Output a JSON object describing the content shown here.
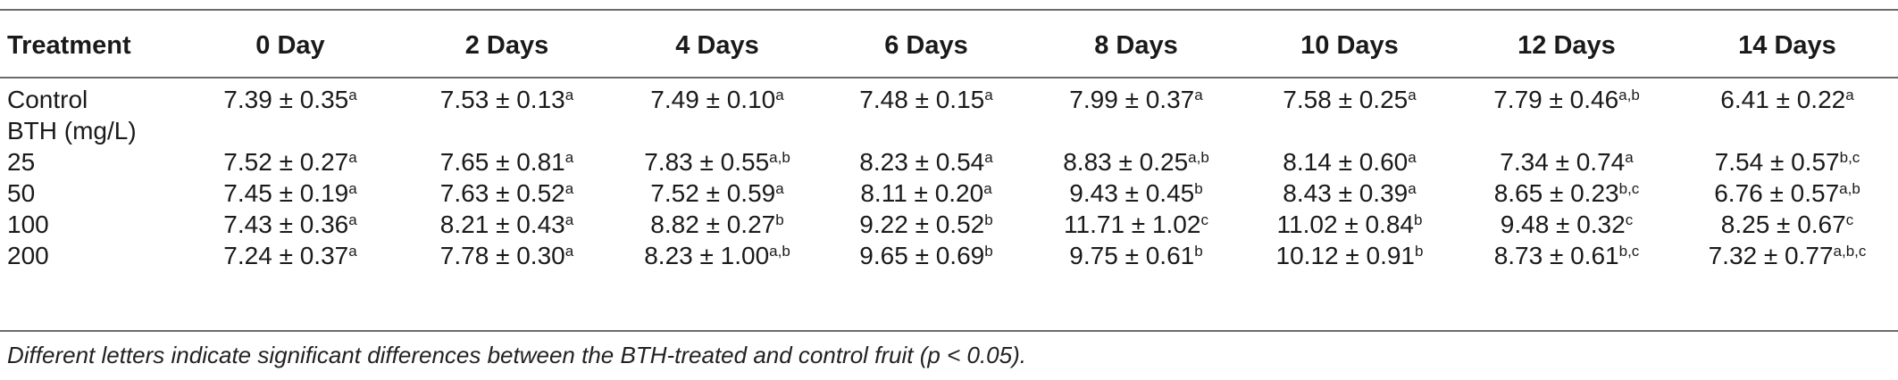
{
  "table": {
    "columns": [
      "Treatment",
      "0 Day",
      "2 Days",
      "4 Days",
      "6 Days",
      "8 Days",
      "10 Days",
      "12 Days",
      "14 Days"
    ],
    "rows": [
      {
        "treatment": "Control",
        "cells": [
          {
            "v": "7.39 ± 0.35",
            "s": "a"
          },
          {
            "v": "7.53 ± 0.13",
            "s": "a"
          },
          {
            "v": "7.49 ± 0.10",
            "s": "a"
          },
          {
            "v": "7.48 ± 0.15",
            "s": "a"
          },
          {
            "v": "7.99 ± 0.37",
            "s": "a"
          },
          {
            "v": "7.58 ± 0.25",
            "s": "a"
          },
          {
            "v": "7.79 ± 0.46",
            "s": "a,b"
          },
          {
            "v": "6.41 ± 0.22",
            "s": "a"
          }
        ]
      },
      {
        "treatment": "BTH (mg/L)",
        "cells": []
      },
      {
        "treatment": "25",
        "cells": [
          {
            "v": "7.52 ± 0.27",
            "s": "a"
          },
          {
            "v": "7.65 ± 0.81",
            "s": "a"
          },
          {
            "v": "7.83 ± 0.55",
            "s": "a,b"
          },
          {
            "v": "8.23 ± 0.54",
            "s": "a"
          },
          {
            "v": "8.83 ± 0.25",
            "s": "a,b"
          },
          {
            "v": "8.14 ± 0.60",
            "s": "a"
          },
          {
            "v": "7.34 ± 0.74",
            "s": "a"
          },
          {
            "v": "7.54 ± 0.57",
            "s": "b,c"
          }
        ]
      },
      {
        "treatment": "50",
        "cells": [
          {
            "v": "7.45 ± 0.19",
            "s": "a"
          },
          {
            "v": "7.63 ± 0.52",
            "s": "a"
          },
          {
            "v": "7.52 ± 0.59",
            "s": "a"
          },
          {
            "v": "8.11 ± 0.20",
            "s": "a"
          },
          {
            "v": "9.43 ± 0.45",
            "s": "b"
          },
          {
            "v": "8.43 ± 0.39",
            "s": "a"
          },
          {
            "v": "8.65 ± 0.23",
            "s": "b,c"
          },
          {
            "v": "6.76 ± 0.57",
            "s": "a,b"
          }
        ]
      },
      {
        "treatment": "100",
        "cells": [
          {
            "v": "7.43 ± 0.36",
            "s": "a"
          },
          {
            "v": "8.21 ± 0.43",
            "s": "a"
          },
          {
            "v": "8.82 ± 0.27",
            "s": "b"
          },
          {
            "v": "9.22 ± 0.52",
            "s": "b"
          },
          {
            "v": "11.71 ± 1.02",
            "s": "c"
          },
          {
            "v": "11.02 ± 0.84",
            "s": "b"
          },
          {
            "v": "9.48 ± 0.32",
            "s": "c"
          },
          {
            "v": "8.25 ± 0.67",
            "s": "c"
          }
        ]
      },
      {
        "treatment": "200",
        "cells": [
          {
            "v": "7.24 ± 0.37",
            "s": "a"
          },
          {
            "v": "7.78 ± 0.30",
            "s": "a"
          },
          {
            "v": "8.23 ± 1.00",
            "s": "a,b"
          },
          {
            "v": "9.65 ± 0.69",
            "s": "b"
          },
          {
            "v": "9.75 ± 0.61",
            "s": "b"
          },
          {
            "v": "10.12 ± 0.91",
            "s": "b"
          },
          {
            "v": "8.73 ± 0.61",
            "s": "b,c"
          },
          {
            "v": "7.32 ± 0.77",
            "s": "a,b,c"
          }
        ]
      }
    ]
  },
  "footnote": "Different letters indicate significant differences between the BTH-treated and control fruit (p < 0.05)."
}
